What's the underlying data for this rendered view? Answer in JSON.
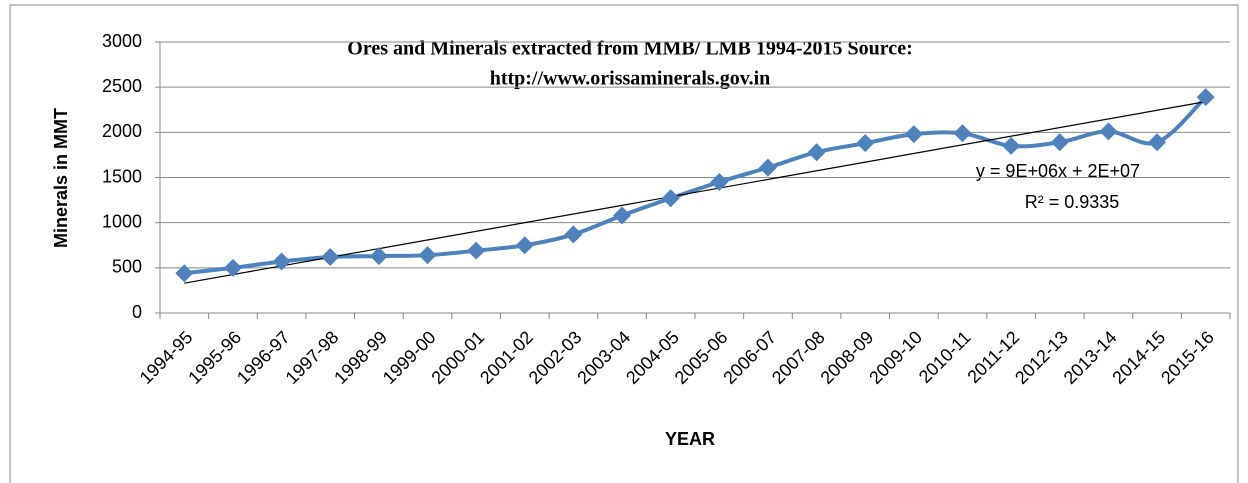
{
  "chart_data": {
    "type": "line",
    "title_lines": [
      "Ores and Minerals extracted from MMB/ LMB 1994-2015 Source:",
      "http://www.orissaminerals.gov.in"
    ],
    "y_label": "Minerals in MMT",
    "x_label": "YEAR",
    "categories": [
      "1994-95",
      "1995-96",
      "1996-97",
      "1997-98",
      "1998-99",
      "1999-00",
      "2000-01",
      "2001-02",
      "2002-03",
      "2003-04",
      "2004-05",
      "2005-06",
      "2006-07",
      "2007-08",
      "2008-09",
      "2009-10",
      "2010-11",
      "2011-12",
      "2012-13",
      "2013-14",
      "2014-15",
      "2015-16"
    ],
    "series": [
      {
        "name": "Minerals",
        "color": "#4f81bd",
        "values": [
          440,
          500,
          570,
          620,
          630,
          640,
          690,
          750,
          870,
          1080,
          1270,
          1450,
          1610,
          1780,
          1880,
          1980,
          1990,
          1850,
          1890,
          2010,
          1890,
          2390
        ]
      }
    ],
    "trendline": {
      "color": "#000000",
      "start": 330,
      "end": 2340
    },
    "annotations": [
      "y = 9E+06x + 2E+07",
      "R² = 0.9335"
    ],
    "ylim": [
      0,
      3000
    ],
    "yticks": [
      0,
      500,
      1000,
      1500,
      2000,
      2500,
      3000
    ],
    "grid": true
  }
}
